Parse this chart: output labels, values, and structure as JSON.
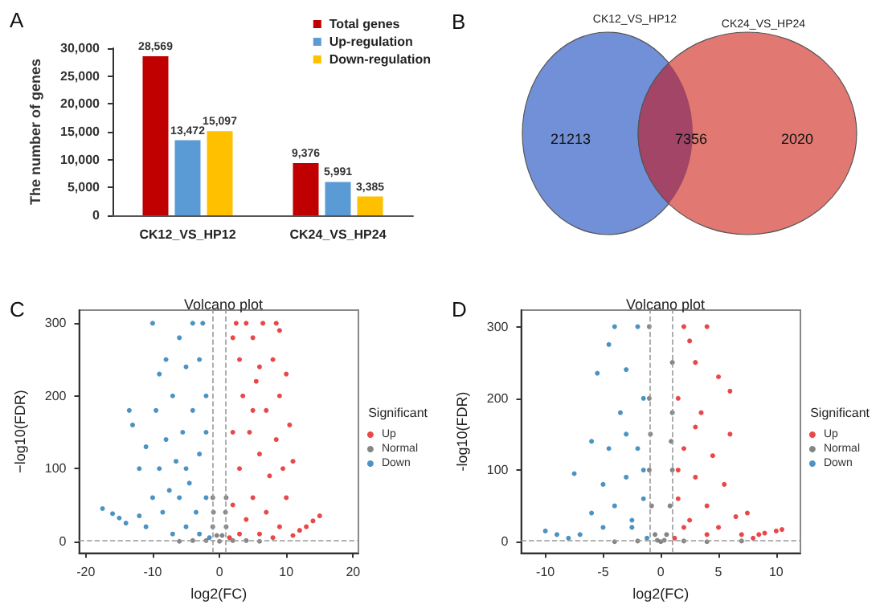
{
  "chart_data": [
    {
      "type": "bar",
      "annotations": [
        "A"
      ],
      "ylabel": "The number of genes",
      "categories": [
        "CK12_VS_HP12",
        "CK24_VS_HP24"
      ],
      "series": [
        {
          "name": "Total genes",
          "color": "#c00000",
          "values": [
            28569,
            9376
          ],
          "value_labels": [
            "28,569",
            "9,376"
          ]
        },
        {
          "name": "Up-regulation",
          "color": "#5b9bd5",
          "values": [
            13472,
            5991
          ],
          "value_labels": [
            "13,472",
            "5,991"
          ]
        },
        {
          "name": "Down-regulation",
          "color": "#ffc000",
          "values": [
            15097,
            3385
          ],
          "value_labels": [
            "15,097",
            "3,385"
          ]
        }
      ],
      "ylim": [
        0,
        30000
      ],
      "yticks": [
        0,
        {
          "value": 5000,
          "label": "5,000"
        },
        {
          "value": 10000,
          "label": "10,000"
        },
        {
          "value": 15000,
          "label": "15,000"
        },
        {
          "value": 20000,
          "label": "20,000"
        },
        {
          "value": 25000,
          "label": "25,000"
        },
        {
          "value": 30000,
          "label": "30,000"
        }
      ],
      "legend": "top right"
    },
    {
      "type": "other",
      "annotations": [
        "B"
      ],
      "categories": [
        "CK12_VS_HP12",
        null,
        "CK24_VS_HP24"
      ],
      "colors": [
        "#7290d8",
        "#a24566",
        "#e27872"
      ],
      "values": [
        21213,
        7356,
        2020
      ],
      "data_labels": true
    },
    {
      "type": "scatter",
      "annotations": [
        "C"
      ],
      "title": "Volcano plot",
      "xlabel": "log2(FC)",
      "ylabel": "−log10(FDR)",
      "legend_title": "Significant",
      "legend": "right",
      "marker": "circle",
      "xlim": [
        -21,
        20.8
      ],
      "xticks": [
        -20,
        -10,
        0,
        10,
        20
      ],
      "ylim": [
        -16,
        318
      ],
      "yticks": [
        0,
        100,
        200,
        300
      ],
      "ref_lines": [
        {
          "axis": "x",
          "value": -1,
          "color": "#999999",
          "line_style": "dashed"
        },
        {
          "axis": "x",
          "value": 1,
          "color": "#999999",
          "line_style": "dashed"
        },
        {
          "axis": "y",
          "value": 2,
          "color": "#999999",
          "line_style": "dashed"
        }
      ],
      "series": [
        {
          "name": "Up",
          "color": "#e31a1c",
          "x": [
            1.5,
            2,
            2,
            2.5,
            3,
            3,
            3.5,
            4,
            4,
            4.5,
            5,
            5,
            5.5,
            6,
            6,
            6.5,
            7,
            7,
            7.5,
            8,
            8,
            8.5,
            9,
            9,
            9.5,
            10,
            10,
            10.5,
            11,
            11,
            12,
            13,
            14,
            15,
            8.5,
            3,
            2,
            5,
            6,
            9
          ],
          "values": [
            5,
            50,
            150,
            300,
            250,
            100,
            200,
            300,
            30,
            150,
            280,
            60,
            220,
            120,
            10,
            300,
            180,
            40,
            90,
            250,
            5,
            140,
            200,
            20,
            100,
            230,
            60,
            160,
            110,
            8,
            15,
            20,
            28,
            35,
            300,
            10,
            280,
            180,
            240,
            290
          ]
        },
        {
          "name": "Normal",
          "color": "#666666",
          "x": [
            -1,
            -1,
            0,
            1,
            1,
            -0.9,
            0.9,
            -0.4,
            0.4,
            2,
            -2,
            4,
            -4,
            6,
            -6
          ],
          "values": [
            60,
            20,
            0,
            20,
            60,
            40,
            40,
            8,
            8,
            1,
            1,
            1,
            1,
            0,
            0
          ]
        },
        {
          "name": "Down",
          "color": "#1f78b4",
          "x": [
            -1.5,
            -2,
            -2,
            -2.5,
            -3,
            -3,
            -3.5,
            -4,
            -4,
            -4.5,
            -5,
            -5,
            -5.5,
            -6,
            -6,
            -6.5,
            -7,
            -7,
            -7.5,
            -8,
            -8,
            -8.5,
            -9,
            -9.5,
            -10,
            -10,
            -11,
            -11,
            -12,
            -12,
            -13,
            -13.5,
            -14,
            -15,
            -16,
            -17.5,
            -3,
            -5,
            -2,
            -9
          ],
          "values": [
            5,
            60,
            200,
            300,
            250,
            120,
            40,
            300,
            180,
            80,
            240,
            20,
            150,
            280,
            60,
            110,
            200,
            10,
            70,
            140,
            250,
            40,
            100,
            180,
            300,
            60,
            130,
            20,
            100,
            35,
            160,
            180,
            25,
            32,
            38,
            45,
            10,
            100,
            150,
            230
          ]
        }
      ]
    },
    {
      "type": "scatter",
      "annotations": [
        "D"
      ],
      "title": "Volcano plot",
      "xlabel": "log2(FC)",
      "ylabel": "-log10(FDR)",
      "legend_title": "Significant",
      "legend": "right",
      "marker": "circle",
      "xlim": [
        -12.1,
        12.1
      ],
      "xticks": [
        -10,
        -5,
        0,
        5,
        10
      ],
      "ylim": [
        -15.6,
        323
      ],
      "yticks": [
        0,
        100,
        200,
        300
      ],
      "ref_lines": [
        {
          "axis": "x",
          "value": -1,
          "color": "#999999",
          "line_style": "dashed"
        },
        {
          "axis": "x",
          "value": 1,
          "color": "#999999",
          "line_style": "dashed"
        },
        {
          "axis": "y",
          "value": 2,
          "color": "#999999",
          "line_style": "dashed"
        }
      ],
      "series": [
        {
          "name": "Up",
          "color": "#e31a1c",
          "x": [
            1.2,
            1.5,
            1.5,
            2,
            2,
            2.5,
            3,
            3,
            3.5,
            4,
            4,
            4.5,
            5,
            5,
            5.5,
            6,
            6.5,
            6,
            7,
            7.5,
            8,
            8.5,
            9,
            10,
            10.5,
            3,
            2.5,
            1.5,
            4,
            2
          ],
          "values": [
            5,
            60,
            200,
            300,
            130,
            30,
            250,
            90,
            180,
            300,
            50,
            120,
            230,
            20,
            80,
            150,
            35,
            210,
            10,
            40,
            5,
            10,
            12,
            15,
            17,
            160,
            280,
            100,
            10,
            20
          ]
        },
        {
          "name": "Normal",
          "color": "#666666",
          "x": [
            -1,
            -1,
            -1,
            -0.8,
            -0.5,
            0,
            0.5,
            0.8,
            1,
            1,
            1,
            -0.9,
            0.9,
            -0.3,
            0.3,
            2,
            -2,
            4,
            -4,
            7
          ],
          "values": [
            300,
            200,
            100,
            50,
            10,
            0,
            10,
            50,
            100,
            180,
            250,
            150,
            140,
            2,
            2,
            1,
            1,
            0,
            0,
            1
          ]
        },
        {
          "name": "Down",
          "color": "#1f78b4",
          "x": [
            -1.2,
            -1.5,
            -1.5,
            -2,
            -2,
            -2.5,
            -3,
            -3,
            -3.5,
            -4,
            -4,
            -4.5,
            -4.5,
            -5,
            -5.5,
            -5,
            -6,
            -6,
            -7,
            -7.5,
            -8,
            -9,
            -10,
            -2.5,
            -3,
            -1.5
          ],
          "values": [
            5,
            60,
            200,
            300,
            130,
            30,
            240,
            90,
            180,
            300,
            50,
            130,
            275,
            20,
            235,
            80,
            40,
            140,
            10,
            95,
            5,
            10,
            15,
            20,
            150,
            100
          ]
        }
      ]
    }
  ]
}
